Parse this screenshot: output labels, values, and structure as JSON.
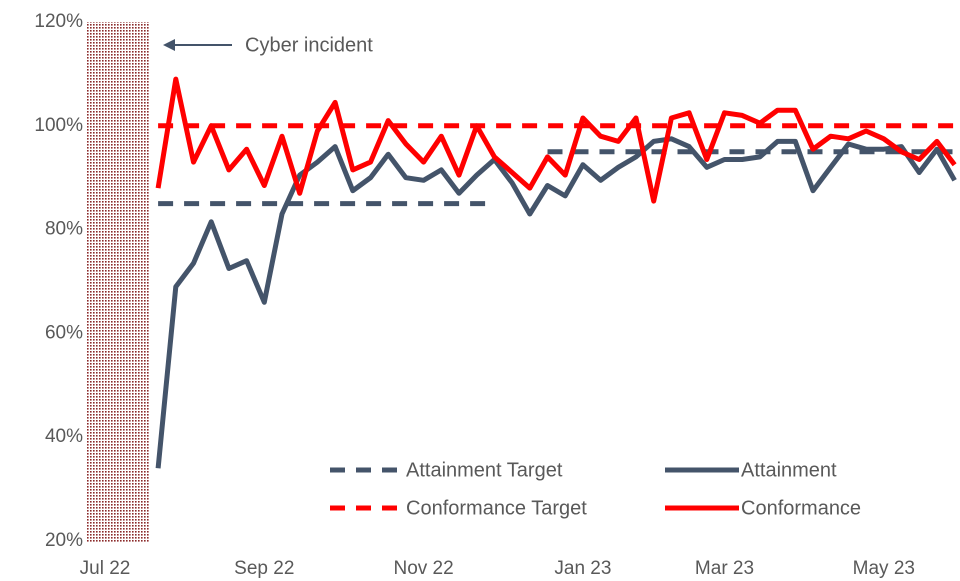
{
  "chart_data": {
    "type": "line",
    "categories": [
      "Jul 22",
      null,
      null,
      null,
      null,
      null,
      null,
      null,
      null,
      "Sep 22",
      null,
      null,
      null,
      null,
      null,
      null,
      null,
      null,
      "Nov 22",
      null,
      null,
      null,
      null,
      null,
      null,
      null,
      null,
      "Jan 23",
      null,
      null,
      null,
      null,
      null,
      null,
      null,
      "Mar 23",
      null,
      null,
      null,
      null,
      null,
      null,
      null,
      null,
      "May 23",
      null,
      null,
      null,
      null
    ],
    "series": [
      {
        "name": "Attainment Target",
        "color": "#44546a",
        "style": "dashed",
        "values": [
          null,
          null,
          null,
          85,
          85,
          85,
          85,
          85,
          85,
          85,
          85,
          85,
          85,
          85,
          85,
          85,
          85,
          85,
          85,
          85,
          85,
          85,
          85,
          null,
          null,
          95,
          95,
          95,
          95,
          95,
          95,
          95,
          95,
          95,
          95,
          95,
          95,
          95,
          95,
          95,
          95,
          95,
          95,
          95,
          95,
          95,
          95,
          95,
          95
        ]
      },
      {
        "name": "Attainment",
        "color": "#44546a",
        "style": "solid",
        "values": [
          null,
          null,
          null,
          34,
          69,
          73.5,
          81.5,
          72.5,
          74,
          66,
          83,
          90.5,
          93,
          96,
          87.5,
          90,
          94.5,
          90,
          89.5,
          91.5,
          87,
          90.5,
          93.5,
          89,
          83,
          88.5,
          86.5,
          92.5,
          89.5,
          92,
          94,
          97,
          97.5,
          96,
          92,
          93.5,
          93.5,
          94,
          97,
          97,
          87.5,
          92,
          96.5,
          95.5,
          95.5,
          96,
          91,
          95.5,
          89.5
        ]
      },
      {
        "name": "Conformance Target",
        "color": "#ff0000",
        "style": "dashed",
        "values": [
          null,
          null,
          null,
          100,
          100,
          100,
          100,
          100,
          100,
          100,
          100,
          100,
          100,
          100,
          100,
          100,
          100,
          100,
          100,
          100,
          100,
          100,
          100,
          100,
          100,
          100,
          100,
          100,
          100,
          100,
          100,
          100,
          100,
          100,
          100,
          100,
          100,
          100,
          100,
          100,
          100,
          100,
          100,
          100,
          100,
          100,
          100,
          100,
          100
        ]
      },
      {
        "name": "Conformance",
        "color": "#ff0000",
        "style": "solid",
        "values": [
          null,
          null,
          null,
          88,
          109,
          93,
          100,
          91.5,
          95.5,
          88.5,
          98,
          87,
          99,
          104.5,
          91.5,
          93,
          101,
          96.5,
          93,
          98,
          90.5,
          100,
          94,
          91,
          88,
          94,
          90.5,
          101.5,
          98,
          97,
          101.5,
          85.5,
          101.5,
          102.5,
          93.5,
          102.5,
          102,
          100.5,
          103,
          103,
          95.5,
          98,
          97.5,
          99,
          97.5,
          95,
          93.5,
          97,
          92.5
        ]
      }
    ],
    "ylim": [
      20,
      120
    ],
    "yticks": [
      {
        "value": 20,
        "label": "20%"
      },
      {
        "value": 40,
        "label": "40%"
      },
      {
        "value": 60,
        "label": "60%"
      },
      {
        "value": 80,
        "label": "80%"
      },
      {
        "value": 100,
        "label": "100%"
      },
      {
        "value": 120,
        "label": "120%"
      }
    ],
    "grid": false,
    "legend": "bottom",
    "annotation": "Cyber incident"
  }
}
